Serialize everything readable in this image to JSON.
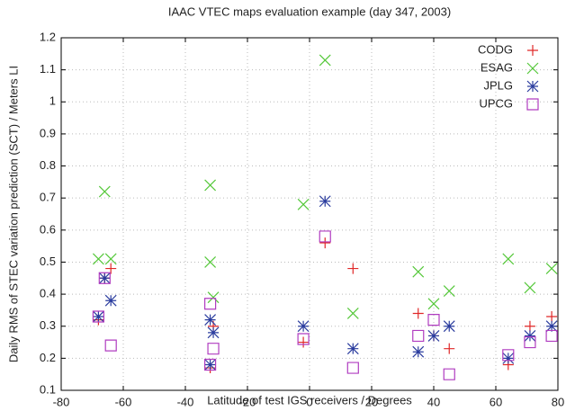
{
  "chart_data": {
    "type": "scatter",
    "title": "IAAC VTEC maps evaluation example (day 347, 2003)",
    "x_label": "Latitude of test IGS receivers / Degrees",
    "y_label": "Daily RMS of STEC variation prediction (SCT) / Meters LI",
    "xlim": [
      -80,
      80
    ],
    "xticks": [
      -80,
      -60,
      -40,
      -20,
      0,
      20,
      40,
      60,
      80
    ],
    "ylim": [
      0.1,
      1.2
    ],
    "yticks": [
      0.1,
      0.2,
      0.3,
      0.4,
      0.5,
      0.6,
      0.7,
      0.8,
      0.9,
      1,
      1.1,
      1.2
    ],
    "grid": true,
    "legend": "top-right",
    "series": [
      {
        "name": "CODG",
        "color": "#e02828",
        "marker": "plus",
        "x": [
          -68,
          -66,
          -64,
          -32,
          -31,
          -2,
          5,
          14,
          35,
          40,
          45,
          64,
          71,
          78
        ],
        "values": [
          0.32,
          0.45,
          0.48,
          0.17,
          0.3,
          0.25,
          0.56,
          0.48,
          0.34,
          0.27,
          0.23,
          0.18,
          0.3,
          0.33
        ]
      },
      {
        "name": "ESAG",
        "color": "#55c83a",
        "marker": "cross",
        "x": [
          -68,
          -66,
          -64,
          -32,
          -32,
          -31,
          -2,
          5,
          14,
          35,
          40,
          45,
          64,
          71,
          78
        ],
        "values": [
          0.51,
          0.72,
          0.51,
          0.74,
          0.5,
          0.39,
          0.68,
          1.13,
          0.34,
          0.47,
          0.37,
          0.41,
          0.51,
          0.42,
          0.48
        ]
      },
      {
        "name": "JPLG",
        "color": "#2a3c9e",
        "marker": "star",
        "x": [
          -68,
          -66,
          -64,
          -32,
          -31,
          -32,
          -2,
          5,
          14,
          35,
          40,
          45,
          64,
          71,
          78
        ],
        "values": [
          0.33,
          0.45,
          0.38,
          0.32,
          0.28,
          0.18,
          0.3,
          0.69,
          0.23,
          0.22,
          0.27,
          0.3,
          0.2,
          0.27,
          0.3
        ]
      },
      {
        "name": "UPCG",
        "color": "#b03cc0",
        "marker": "square",
        "x": [
          -68,
          -66,
          -64,
          -32,
          -31,
          -32,
          -2,
          5,
          14,
          35,
          40,
          45,
          64,
          71,
          78
        ],
        "values": [
          0.33,
          0.45,
          0.24,
          0.37,
          0.23,
          0.18,
          0.26,
          0.58,
          0.17,
          0.27,
          0.32,
          0.15,
          0.21,
          0.25,
          0.27
        ]
      }
    ]
  }
}
